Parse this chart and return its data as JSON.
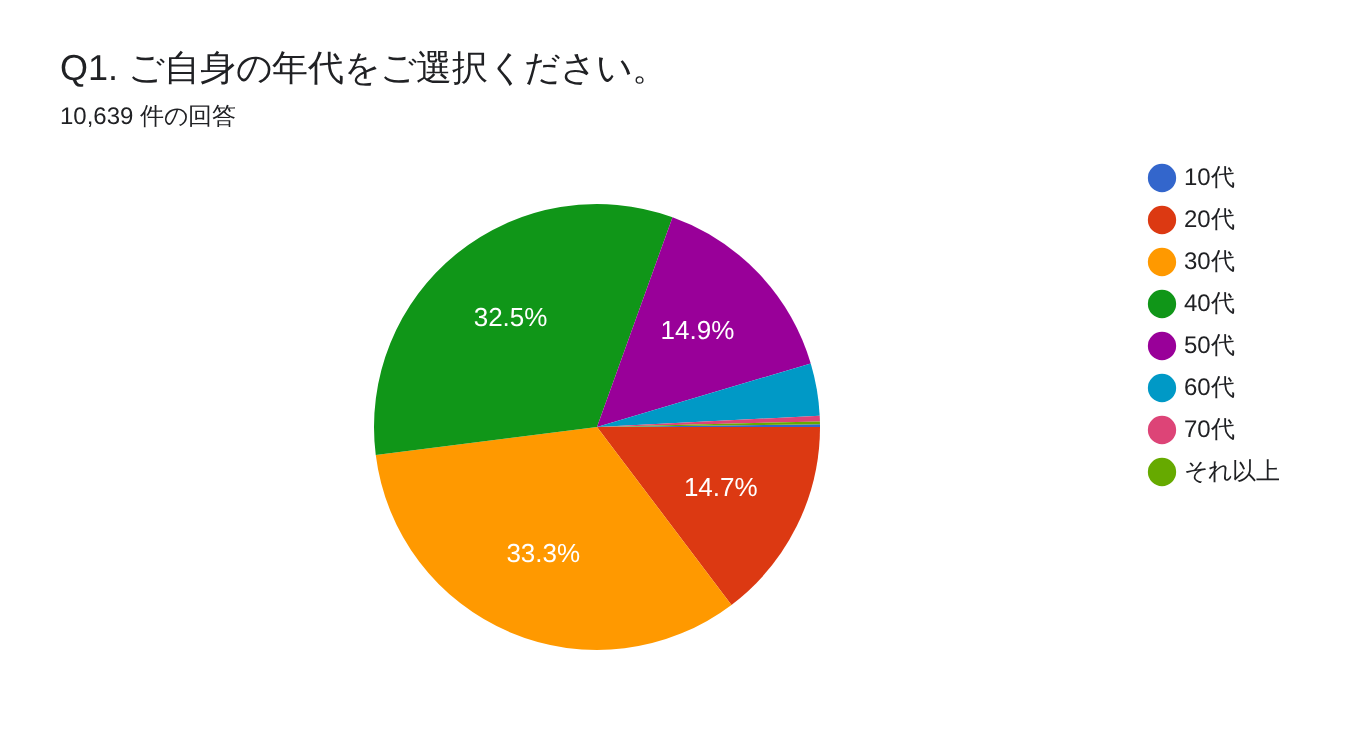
{
  "chart_data": {
    "type": "pie",
    "title": "Q1. ご自身の年代をご選択ください。",
    "subtitle": "10,639 件の回答",
    "categories": [
      "10代",
      "20代",
      "30代",
      "40代",
      "50代",
      "60代",
      "70代",
      "それ以上"
    ],
    "values": [
      0.2,
      14.7,
      33.3,
      32.5,
      14.9,
      3.8,
      0.4,
      0.2
    ],
    "colors": [
      "#3366cc",
      "#dc3912",
      "#ff9900",
      "#109618",
      "#990099",
      "#0099c6",
      "#dd4477",
      "#66aa00"
    ],
    "value_labels": [
      null,
      "14.7%",
      "33.3%",
      "32.5%",
      "14.9%",
      null,
      null,
      null
    ],
    "legend": "right",
    "marker": "circle"
  }
}
